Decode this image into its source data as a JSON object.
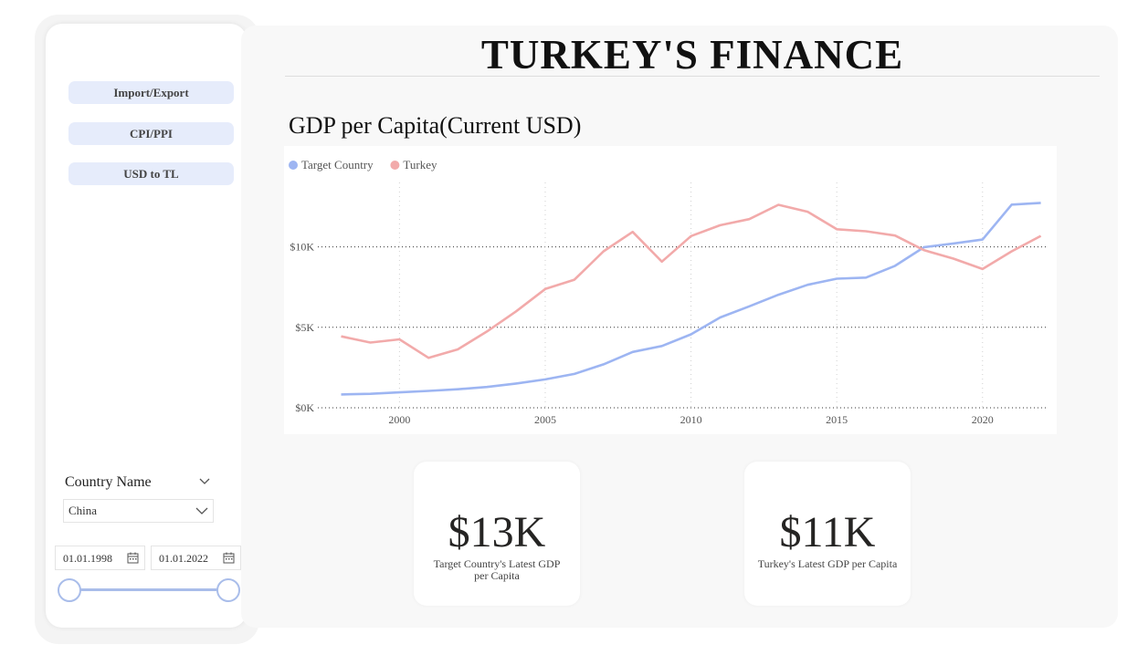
{
  "sidebar": {
    "nav": [
      {
        "label": "Import/Export"
      },
      {
        "label": "CPI/PPI"
      },
      {
        "label": "USD to TL"
      }
    ],
    "country_filter": {
      "label": "Country Name",
      "selected": "China"
    },
    "date_range": {
      "start": "01.01.1998",
      "end": "01.01.2022"
    },
    "slider": {
      "start_fraction": 0,
      "end_fraction": 1
    }
  },
  "main": {
    "title": "TURKEY'S FINANCE",
    "chart_title": "GDP per Capita(Current USD)",
    "cards": [
      {
        "value": "$13K",
        "label": "Target Country's Latest GDP per Capita"
      },
      {
        "value": "$11K",
        "label": "Turkey's Latest GDP per Capita"
      }
    ]
  },
  "colors": {
    "target": "#9db5f2",
    "turkey": "#f2aaaa",
    "accent": "#a9bdea"
  },
  "chart_data": {
    "type": "line",
    "title": "GDP per Capita(Current USD)",
    "xlabel": "",
    "ylabel": "",
    "x": [
      1998,
      1999,
      2000,
      2001,
      2002,
      2003,
      2004,
      2005,
      2006,
      2007,
      2008,
      2009,
      2010,
      2011,
      2012,
      2013,
      2014,
      2015,
      2016,
      2017,
      2018,
      2019,
      2020,
      2021,
      2022
    ],
    "series": [
      {
        "name": "Target Country",
        "values": [
          830,
          870,
          960,
          1050,
          1150,
          1290,
          1510,
          1760,
          2100,
          2700,
          3470,
          3840,
          4560,
          5610,
          6300,
          7020,
          7640,
          8020,
          8090,
          8820,
          9980,
          10210,
          10450,
          12620,
          12730
        ]
      },
      {
        "name": "Turkey",
        "values": [
          4440,
          4050,
          4250,
          3100,
          3630,
          4740,
          5990,
          7380,
          7960,
          9720,
          10930,
          9080,
          10670,
          11340,
          11720,
          12610,
          12180,
          11090,
          10970,
          10700,
          9790,
          9270,
          8620,
          9720,
          10680
        ]
      }
    ],
    "xlim": [
      1998,
      2022
    ],
    "ylim": [
      0,
      14000
    ],
    "xticks": [
      2000,
      2005,
      2010,
      2015,
      2020
    ],
    "xtick_labels": [
      "2000",
      "2005",
      "2010",
      "2015",
      "2020"
    ],
    "yticks": [
      0,
      5000,
      10000
    ],
    "ytick_labels": [
      "$0K",
      "$5K",
      "$10K"
    ],
    "grid": true,
    "legend": "top-left"
  }
}
